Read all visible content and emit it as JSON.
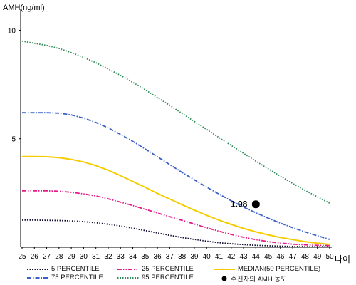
{
  "colors": {
    "p5": "#111133",
    "p25": "#e6198a",
    "p50": "#f5cc00",
    "p75": "#3a60c8",
    "p95": "#2e8b57",
    "patient": "#000000",
    "axis": "#000000"
  },
  "chart_data": {
    "type": "line",
    "title": "",
    "ylabel": "AMH(ng/ml)",
    "xlabel": "나이",
    "ylim": [
      0,
      11
    ],
    "xlim": [
      25,
      50
    ],
    "yticks": [
      5,
      10
    ],
    "x": [
      25,
      26,
      27,
      28,
      29,
      30,
      31,
      32,
      33,
      34,
      35,
      36,
      37,
      38,
      39,
      40,
      41,
      42,
      43,
      44,
      45,
      46,
      47,
      48,
      49,
      50
    ],
    "series": [
      {
        "name": "5 PERCENTILE",
        "key": "p5",
        "style": "dotted",
        "values": [
          1.25,
          1.25,
          1.24,
          1.23,
          1.21,
          1.18,
          1.13,
          1.06,
          0.98,
          0.88,
          0.77,
          0.66,
          0.55,
          0.45,
          0.36,
          0.28,
          0.21,
          0.16,
          0.12,
          0.09,
          0.07,
          0.05,
          0.04,
          0.03,
          0.03,
          0.02
        ]
      },
      {
        "name": "25 PERCENTILE",
        "key": "p25",
        "style": "dashdot2",
        "values": [
          2.6,
          2.6,
          2.6,
          2.58,
          2.53,
          2.46,
          2.36,
          2.23,
          2.08,
          1.92,
          1.75,
          1.58,
          1.41,
          1.24,
          1.07,
          0.9,
          0.74,
          0.59,
          0.46,
          0.35,
          0.26,
          0.19,
          0.14,
          0.11,
          0.09,
          0.08
        ]
      },
      {
        "name": "MEDIAN(50 PERCENTILE)",
        "key": "p50",
        "style": "solid",
        "values": [
          4.18,
          4.18,
          4.17,
          4.13,
          4.05,
          3.93,
          3.76,
          3.55,
          3.3,
          3.03,
          2.76,
          2.48,
          2.22,
          1.96,
          1.71,
          1.47,
          1.25,
          1.05,
          0.87,
          0.71,
          0.57,
          0.45,
          0.35,
          0.26,
          0.19,
          0.13
        ]
      },
      {
        "name": "75 PERCENTILE",
        "key": "p75",
        "style": "dashdot",
        "values": [
          6.2,
          6.2,
          6.2,
          6.18,
          6.1,
          5.95,
          5.75,
          5.5,
          5.2,
          4.88,
          4.53,
          4.17,
          3.81,
          3.45,
          3.11,
          2.77,
          2.45,
          2.14,
          1.85,
          1.59,
          1.34,
          1.11,
          0.9,
          0.71,
          0.53,
          0.36
        ]
      },
      {
        "name": "95 PERCENTILE",
        "key": "p95",
        "style": "dotted",
        "values": [
          9.5,
          9.4,
          9.3,
          9.16,
          8.97,
          8.75,
          8.5,
          8.22,
          7.92,
          7.6,
          7.26,
          6.9,
          6.54,
          6.17,
          5.8,
          5.43,
          5.06,
          4.69,
          4.33,
          3.97,
          3.62,
          3.27,
          2.94,
          2.62,
          2.32,
          2.03
        ]
      }
    ],
    "patient": {
      "name": "수진자의 AMH 농도",
      "x": 44,
      "y": 1.98,
      "label": "1.98"
    },
    "legend_position": "bottom"
  }
}
